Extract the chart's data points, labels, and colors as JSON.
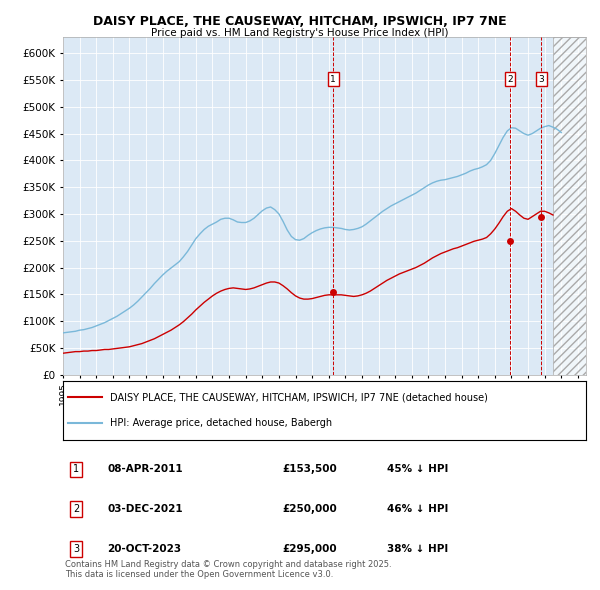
{
  "title1": "DAISY PLACE, THE CAUSEWAY, HITCHAM, IPSWICH, IP7 7NE",
  "title2": "Price paid vs. HM Land Registry's House Price Index (HPI)",
  "legend_line1": "DAISY PLACE, THE CAUSEWAY, HITCHAM, IPSWICH, IP7 7NE (detached house)",
  "legend_line2": "HPI: Average price, detached house, Babergh",
  "footer": "Contains HM Land Registry data © Crown copyright and database right 2025.\nThis data is licensed under the Open Government Licence v3.0.",
  "hpi_color": "#7ab8d9",
  "price_color": "#cc0000",
  "vline_color": "#cc0000",
  "plot_bg": "#dce9f5",
  "ylim": [
    0,
    630000
  ],
  "yticks": [
    0,
    50000,
    100000,
    150000,
    200000,
    250000,
    300000,
    350000,
    400000,
    450000,
    500000,
    550000,
    600000
  ],
  "transactions": [
    {
      "num": 1,
      "date_str": "08-APR-2011",
      "date_x": 2011.27,
      "price": 153500,
      "pct": "45%",
      "dir": "↓"
    },
    {
      "num": 2,
      "date_str": "03-DEC-2021",
      "date_x": 2021.92,
      "price": 250000,
      "pct": "46%",
      "dir": "↓"
    },
    {
      "num": 3,
      "date_str": "20-OCT-2023",
      "date_x": 2023.8,
      "price": 295000,
      "pct": "38%",
      "dir": "↓"
    }
  ],
  "xmin": 1995,
  "xmax": 2026.5,
  "hpi_data_x": [
    1995.0,
    1995.25,
    1995.5,
    1995.75,
    1996.0,
    1996.25,
    1996.5,
    1996.75,
    1997.0,
    1997.25,
    1997.5,
    1997.75,
    1998.0,
    1998.25,
    1998.5,
    1998.75,
    1999.0,
    1999.25,
    1999.5,
    1999.75,
    2000.0,
    2000.25,
    2000.5,
    2000.75,
    2001.0,
    2001.25,
    2001.5,
    2001.75,
    2002.0,
    2002.25,
    2002.5,
    2002.75,
    2003.0,
    2003.25,
    2003.5,
    2003.75,
    2004.0,
    2004.25,
    2004.5,
    2004.75,
    2005.0,
    2005.25,
    2005.5,
    2005.75,
    2006.0,
    2006.25,
    2006.5,
    2006.75,
    2007.0,
    2007.25,
    2007.5,
    2007.75,
    2008.0,
    2008.25,
    2008.5,
    2008.75,
    2009.0,
    2009.25,
    2009.5,
    2009.75,
    2010.0,
    2010.25,
    2010.5,
    2010.75,
    2011.0,
    2011.25,
    2011.5,
    2011.75,
    2012.0,
    2012.25,
    2012.5,
    2012.75,
    2013.0,
    2013.25,
    2013.5,
    2013.75,
    2014.0,
    2014.25,
    2014.5,
    2014.75,
    2015.0,
    2015.25,
    2015.5,
    2015.75,
    2016.0,
    2016.25,
    2016.5,
    2016.75,
    2017.0,
    2017.25,
    2017.5,
    2017.75,
    2018.0,
    2018.25,
    2018.5,
    2018.75,
    2019.0,
    2019.25,
    2019.5,
    2019.75,
    2020.0,
    2020.25,
    2020.5,
    2020.75,
    2021.0,
    2021.25,
    2021.5,
    2021.75,
    2022.0,
    2022.25,
    2022.5,
    2022.75,
    2023.0,
    2023.25,
    2023.5,
    2023.75,
    2024.0,
    2024.25,
    2024.5,
    2024.75,
    2025.0
  ],
  "hpi_data_y": [
    78000,
    79000,
    80000,
    81000,
    83000,
    84000,
    86000,
    88000,
    91000,
    94000,
    97000,
    101000,
    105000,
    109000,
    114000,
    119000,
    124000,
    130000,
    137000,
    145000,
    153000,
    161000,
    170000,
    178000,
    186000,
    193000,
    199000,
    205000,
    211000,
    220000,
    230000,
    242000,
    254000,
    263000,
    271000,
    277000,
    281000,
    285000,
    290000,
    292000,
    292000,
    289000,
    285000,
    284000,
    284000,
    287000,
    292000,
    299000,
    306000,
    311000,
    313000,
    308000,
    300000,
    286000,
    270000,
    258000,
    252000,
    251000,
    254000,
    260000,
    265000,
    269000,
    272000,
    274000,
    275000,
    275000,
    274000,
    273000,
    271000,
    270000,
    271000,
    273000,
    276000,
    281000,
    287000,
    293000,
    299000,
    305000,
    310000,
    315000,
    319000,
    323000,
    327000,
    331000,
    335000,
    339000,
    344000,
    349000,
    354000,
    358000,
    361000,
    363000,
    364000,
    366000,
    368000,
    370000,
    373000,
    376000,
    380000,
    383000,
    385000,
    388000,
    392000,
    400000,
    413000,
    428000,
    443000,
    455000,
    461000,
    460000,
    455000,
    450000,
    447000,
    450000,
    455000,
    460000,
    463000,
    465000,
    462000,
    458000,
    452000
  ],
  "price_data_x": [
    1995.0,
    1995.25,
    1995.5,
    1995.75,
    1996.0,
    1996.25,
    1996.5,
    1996.75,
    1997.0,
    1997.25,
    1997.5,
    1997.75,
    1998.0,
    1998.25,
    1998.5,
    1998.75,
    1999.0,
    1999.25,
    1999.5,
    1999.75,
    2000.0,
    2000.25,
    2000.5,
    2000.75,
    2001.0,
    2001.25,
    2001.5,
    2001.75,
    2002.0,
    2002.25,
    2002.5,
    2002.75,
    2003.0,
    2003.25,
    2003.5,
    2003.75,
    2004.0,
    2004.25,
    2004.5,
    2004.75,
    2005.0,
    2005.25,
    2005.5,
    2005.75,
    2006.0,
    2006.25,
    2006.5,
    2006.75,
    2007.0,
    2007.25,
    2007.5,
    2007.75,
    2008.0,
    2008.25,
    2008.5,
    2008.75,
    2009.0,
    2009.25,
    2009.5,
    2009.75,
    2010.0,
    2010.25,
    2010.5,
    2010.75,
    2011.0,
    2011.25,
    2011.5,
    2011.75,
    2012.0,
    2012.25,
    2012.5,
    2012.75,
    2013.0,
    2013.25,
    2013.5,
    2013.75,
    2014.0,
    2014.25,
    2014.5,
    2014.75,
    2015.0,
    2015.25,
    2015.5,
    2015.75,
    2016.0,
    2016.25,
    2016.5,
    2016.75,
    2017.0,
    2017.25,
    2017.5,
    2017.75,
    2018.0,
    2018.25,
    2018.5,
    2018.75,
    2019.0,
    2019.25,
    2019.5,
    2019.75,
    2020.0,
    2020.25,
    2020.5,
    2020.75,
    2021.0,
    2021.25,
    2021.5,
    2021.75,
    2022.0,
    2022.25,
    2022.5,
    2022.75,
    2023.0,
    2023.25,
    2023.5,
    2023.75,
    2024.0,
    2024.25,
    2024.5
  ],
  "price_data_y": [
    40000,
    41000,
    42000,
    43000,
    43000,
    44000,
    44000,
    45000,
    45000,
    46000,
    47000,
    47000,
    48000,
    49000,
    50000,
    51000,
    52000,
    54000,
    56000,
    58000,
    61000,
    64000,
    67000,
    71000,
    75000,
    79000,
    83000,
    88000,
    93000,
    99000,
    106000,
    113000,
    121000,
    128000,
    135000,
    141000,
    147000,
    152000,
    156000,
    159000,
    161000,
    162000,
    161000,
    160000,
    159000,
    160000,
    162000,
    165000,
    168000,
    171000,
    173000,
    173000,
    171000,
    166000,
    160000,
    153000,
    147000,
    143000,
    141000,
    141000,
    142000,
    144000,
    146000,
    148000,
    149000,
    149000,
    149000,
    149000,
    148000,
    147000,
    146000,
    147000,
    149000,
    152000,
    156000,
    161000,
    166000,
    171000,
    176000,
    180000,
    184000,
    188000,
    191000,
    194000,
    197000,
    200000,
    204000,
    208000,
    213000,
    218000,
    222000,
    226000,
    229000,
    232000,
    235000,
    237000,
    240000,
    243000,
    246000,
    249000,
    251000,
    253000,
    256000,
    263000,
    272000,
    283000,
    295000,
    305000,
    310000,
    305000,
    298000,
    292000,
    290000,
    295000,
    300000,
    305000,
    305000,
    302000,
    298000
  ]
}
